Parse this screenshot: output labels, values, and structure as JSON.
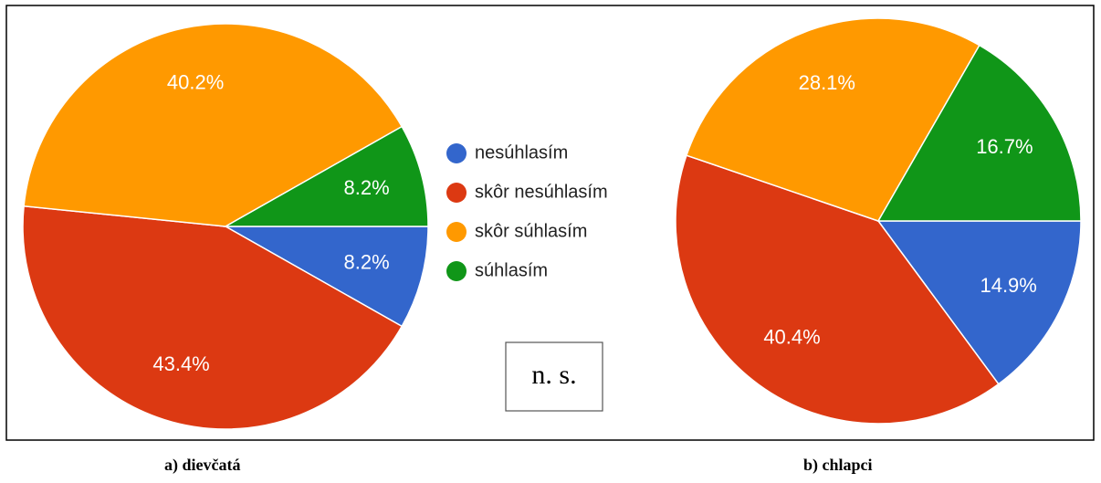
{
  "legend": {
    "categories": [
      "nesúhlasím",
      "skôr nesúhlasím",
      "skôr súhlasím",
      "súhlasím"
    ],
    "colors": [
      "#3366cc",
      "#dc3912",
      "#ff9900",
      "#109618"
    ]
  },
  "annotation": "n. s.",
  "chart_data": [
    {
      "type": "pie",
      "caption": "a)    dievčatá",
      "values": [
        8.2,
        43.4,
        40.2,
        8.2
      ],
      "value_labels": [
        "8.2%",
        "43.4%",
        "40.2%",
        "8.2%"
      ]
    },
    {
      "type": "pie",
      "caption": "b) chlapci",
      "values": [
        14.9,
        40.4,
        28.1,
        16.7
      ],
      "value_labels": [
        "14.9%",
        "40.4%",
        "28.1%",
        "16.7%"
      ]
    }
  ]
}
